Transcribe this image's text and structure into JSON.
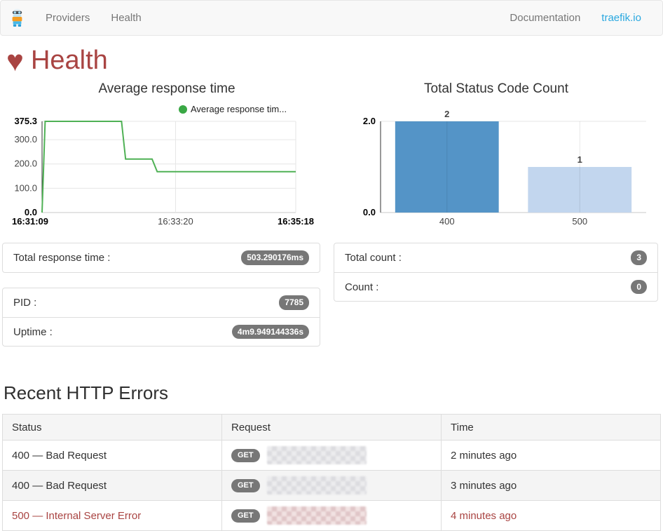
{
  "navbar": {
    "brand_icon": "traefik-mascot",
    "links_left": [
      "Providers",
      "Health"
    ],
    "links_right": [
      "Documentation",
      "traefik.io"
    ]
  },
  "header": {
    "icon_glyph": "♥",
    "title": "Health"
  },
  "chart_data": [
    {
      "type": "line",
      "title": "Average response time",
      "legend": "Average response tim...",
      "xlabel": "",
      "ylabel": "",
      "xlim": [
        0,
        249
      ],
      "ylim": [
        0,
        375.3
      ],
      "grid": true,
      "legend_position": "top-right",
      "series": [
        {
          "name": "Average response tim...",
          "color": "#4fb155",
          "dot_color": "#3aa845",
          "points": [
            [
              0,
              0
            ],
            [
              3,
              375.3
            ],
            [
              78,
              375.3
            ],
            [
              82,
              220
            ],
            [
              108,
              220
            ],
            [
              113,
              168
            ],
            [
              249,
              168
            ]
          ]
        }
      ],
      "x_ticks": [
        {
          "pos": 0,
          "label": "16:31:09",
          "bold": true
        },
        {
          "pos": 131,
          "label": "16:33:20",
          "bold": false
        },
        {
          "pos": 249,
          "label": "16:35:18",
          "bold": true
        }
      ],
      "y_ticks": [
        {
          "value": 0,
          "label": "0.0",
          "bold": true
        },
        {
          "value": 100,
          "label": "100.0",
          "bold": false
        },
        {
          "value": 200,
          "label": "200.0",
          "bold": false
        },
        {
          "value": 300,
          "label": "300.0",
          "bold": false
        },
        {
          "value": 375.3,
          "label": "375.3",
          "bold": true
        }
      ]
    },
    {
      "type": "bar",
      "title": "Total Status Code Count",
      "categories": [
        "400",
        "500"
      ],
      "values": [
        2,
        1
      ],
      "bar_colors": [
        "#5494c7",
        "#c2d6ee"
      ],
      "value_labels": [
        "2",
        "1"
      ],
      "xlabel": "",
      "ylabel": "",
      "ylim": [
        0,
        2
      ],
      "grid": true,
      "y_ticks": [
        {
          "value": 0,
          "label": "0.0",
          "bold": true
        },
        {
          "value": 2,
          "label": "2.0",
          "bold": true
        }
      ]
    }
  ],
  "summary_left": {
    "panel1": [
      {
        "label": "Total response time :",
        "value": "503.290176ms"
      }
    ],
    "panel2": [
      {
        "label": "PID :",
        "value": "7785"
      },
      {
        "label": "Uptime :",
        "value": "4m9.949144336s"
      }
    ]
  },
  "summary_right": {
    "panel": [
      {
        "label": "Total count :",
        "value": "3"
      },
      {
        "label": "Count :",
        "value": "0"
      }
    ]
  },
  "errors": {
    "title": "Recent HTTP Errors",
    "columns": [
      "Status",
      "Request",
      "Time"
    ],
    "rows": [
      {
        "status": "400 — Bad Request",
        "method": "GET",
        "time": "2 minutes ago"
      },
      {
        "status": "400 — Bad Request",
        "method": "GET",
        "time": "3 minutes ago"
      },
      {
        "status": "500 — Internal Server Error",
        "method": "GET",
        "time": "4 minutes ago"
      }
    ]
  }
}
